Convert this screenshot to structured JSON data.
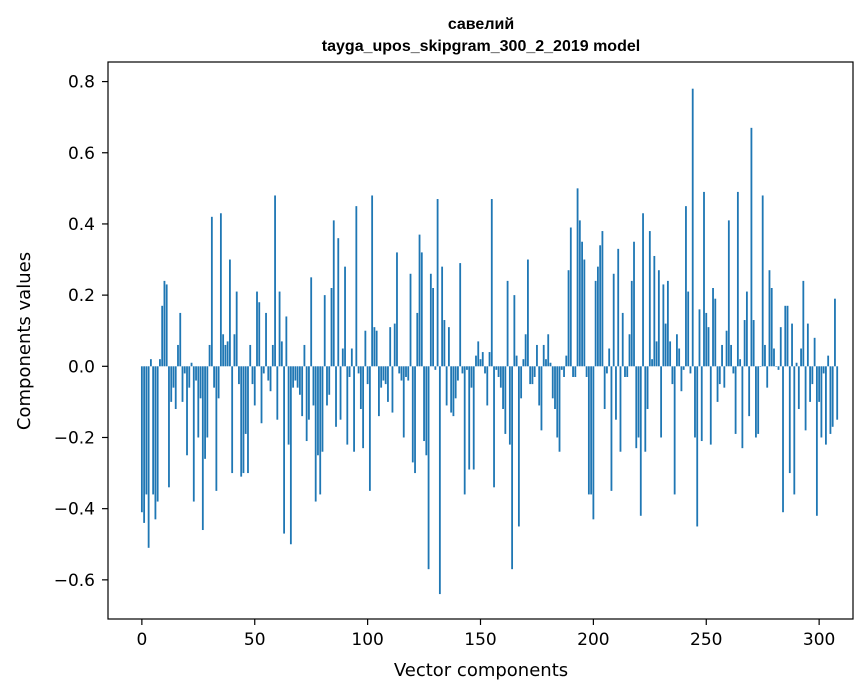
{
  "chart_data": {
    "type": "bar",
    "title": "савелий",
    "subtitle": "tayga_upos_skipgram_300_2_2019 model",
    "xlabel": "Vector components",
    "ylabel": "Components values",
    "xlim": [
      -15,
      315
    ],
    "ylim": [
      -0.71,
      0.855
    ],
    "xticks": [
      0,
      50,
      100,
      150,
      200,
      250,
      300
    ],
    "xtick_labels": [
      "0",
      "50",
      "100",
      "150",
      "200",
      "250",
      "300"
    ],
    "yticks": [
      -0.6,
      -0.4,
      -0.2,
      0.0,
      0.2,
      0.4,
      0.6,
      0.8
    ],
    "ytick_labels": [
      "−0.6",
      "−0.4",
      "−0.2",
      "0.0",
      "0.2",
      "0.4",
      "0.6",
      "0.8"
    ],
    "grid": false,
    "bar_color": "#1f77b4",
    "values": [
      -0.41,
      -0.44,
      -0.36,
      -0.51,
      0.02,
      -0.36,
      -0.43,
      -0.38,
      0.02,
      0.17,
      0.24,
      0.23,
      -0.34,
      -0.1,
      -0.06,
      -0.12,
      0.06,
      0.15,
      -0.1,
      -0.02,
      -0.25,
      -0.06,
      0.01,
      -0.38,
      -0.04,
      -0.2,
      -0.09,
      -0.46,
      -0.26,
      -0.2,
      0.06,
      0.42,
      -0.06,
      -0.35,
      -0.09,
      0.43,
      0.09,
      0.06,
      0.07,
      0.3,
      -0.3,
      0.09,
      0.21,
      -0.05,
      -0.31,
      -0.3,
      -0.19,
      -0.3,
      0.06,
      -0.05,
      -0.11,
      0.21,
      0.18,
      -0.16,
      -0.02,
      0.15,
      -0.04,
      -0.07,
      0.06,
      0.48,
      -0.15,
      0.21,
      0.07,
      -0.47,
      0.14,
      -0.22,
      -0.5,
      -0.06,
      -0.04,
      -0.06,
      -0.08,
      -0.14,
      0.06,
      -0.21,
      -0.15,
      0.25,
      -0.11,
      -0.38,
      -0.25,
      -0.36,
      -0.24,
      0.2,
      -0.11,
      -0.08,
      0.22,
      0.41,
      -0.17,
      0.36,
      -0.15,
      0.05,
      0.28,
      -0.22,
      -0.03,
      0.05,
      -0.24,
      0.45,
      -0.02,
      -0.12,
      -0.23,
      0.1,
      -0.05,
      -0.35,
      0.48,
      0.11,
      0.1,
      -0.14,
      -0.06,
      -0.04,
      -0.05,
      -0.1,
      0.11,
      -0.13,
      0.12,
      0.32,
      -0.02,
      -0.04,
      -0.2,
      -0.03,
      -0.04,
      0.26,
      -0.27,
      -0.3,
      0.15,
      0.37,
      0.32,
      -0.21,
      -0.25,
      -0.57,
      0.26,
      0.22,
      -0.01,
      0.47,
      -0.64,
      0.28,
      0.13,
      -0.11,
      0.11,
      -0.13,
      -0.14,
      -0.09,
      -0.04,
      0.29,
      -0.02,
      -0.36,
      -0.01,
      -0.29,
      -0.06,
      -0.29,
      0.03,
      0.07,
      0.02,
      0.04,
      -0.02,
      -0.11,
      0.04,
      0.47,
      -0.34,
      -0.01,
      -0.03,
      -0.06,
      -0.12,
      -0.19,
      0.24,
      -0.22,
      -0.57,
      0.2,
      0.03,
      -0.45,
      -0.09,
      0.02,
      0.09,
      0.3,
      -0.05,
      -0.05,
      -0.03,
      0.06,
      -0.11,
      -0.18,
      0.06,
      0.02,
      0.09,
      0.01,
      -0.09,
      -0.12,
      -0.2,
      -0.24,
      -0.01,
      -0.03,
      0.03,
      0.27,
      0.39,
      -0.03,
      -0.03,
      0.5,
      0.41,
      0.35,
      0.3,
      -0.03,
      -0.36,
      -0.36,
      -0.43,
      0.24,
      0.28,
      0.34,
      0.38,
      -0.12,
      -0.02,
      0.05,
      -0.35,
      0.26,
      -0.15,
      0.33,
      -0.24,
      0.15,
      -0.03,
      -0.03,
      0.09,
      0.24,
      0.35,
      -0.23,
      -0.2,
      -0.42,
      0.43,
      -0.24,
      -0.12,
      0.38,
      0.02,
      0.31,
      0.07,
      0.27,
      -0.2,
      0.23,
      0.12,
      0.24,
      0.07,
      -0.05,
      -0.36,
      0.09,
      0.05,
      -0.07,
      -0.01,
      0.45,
      0.21,
      -0.02,
      0.78,
      -0.2,
      -0.45,
      0.16,
      -0.21,
      0.49,
      0.15,
      0.11,
      -0.22,
      0.22,
      0.19,
      -0.1,
      -0.05,
      0.06,
      -0.06,
      0.1,
      0.41,
      0.06,
      -0.02,
      -0.19,
      0.49,
      0.02,
      -0.23,
      0.13,
      0.21,
      -0.14,
      0.67,
      0.13,
      -0.2,
      -0.19,
      0.0,
      0.48,
      0.06,
      -0.06,
      0.27,
      0.22,
      0.05,
      0.0,
      -0.01,
      0.11,
      -0.41,
      0.17,
      0.17,
      -0.3,
      0.12,
      -0.36,
      0.01,
      -0.12,
      0.05,
      0.24,
      -0.18,
      0.12,
      -0.1,
      -0.05,
      0.08,
      -0.42,
      -0.1,
      -0.2,
      -0.02,
      -0.22,
      0.03,
      -0.19,
      -0.17,
      0.19,
      -0.15
    ]
  }
}
